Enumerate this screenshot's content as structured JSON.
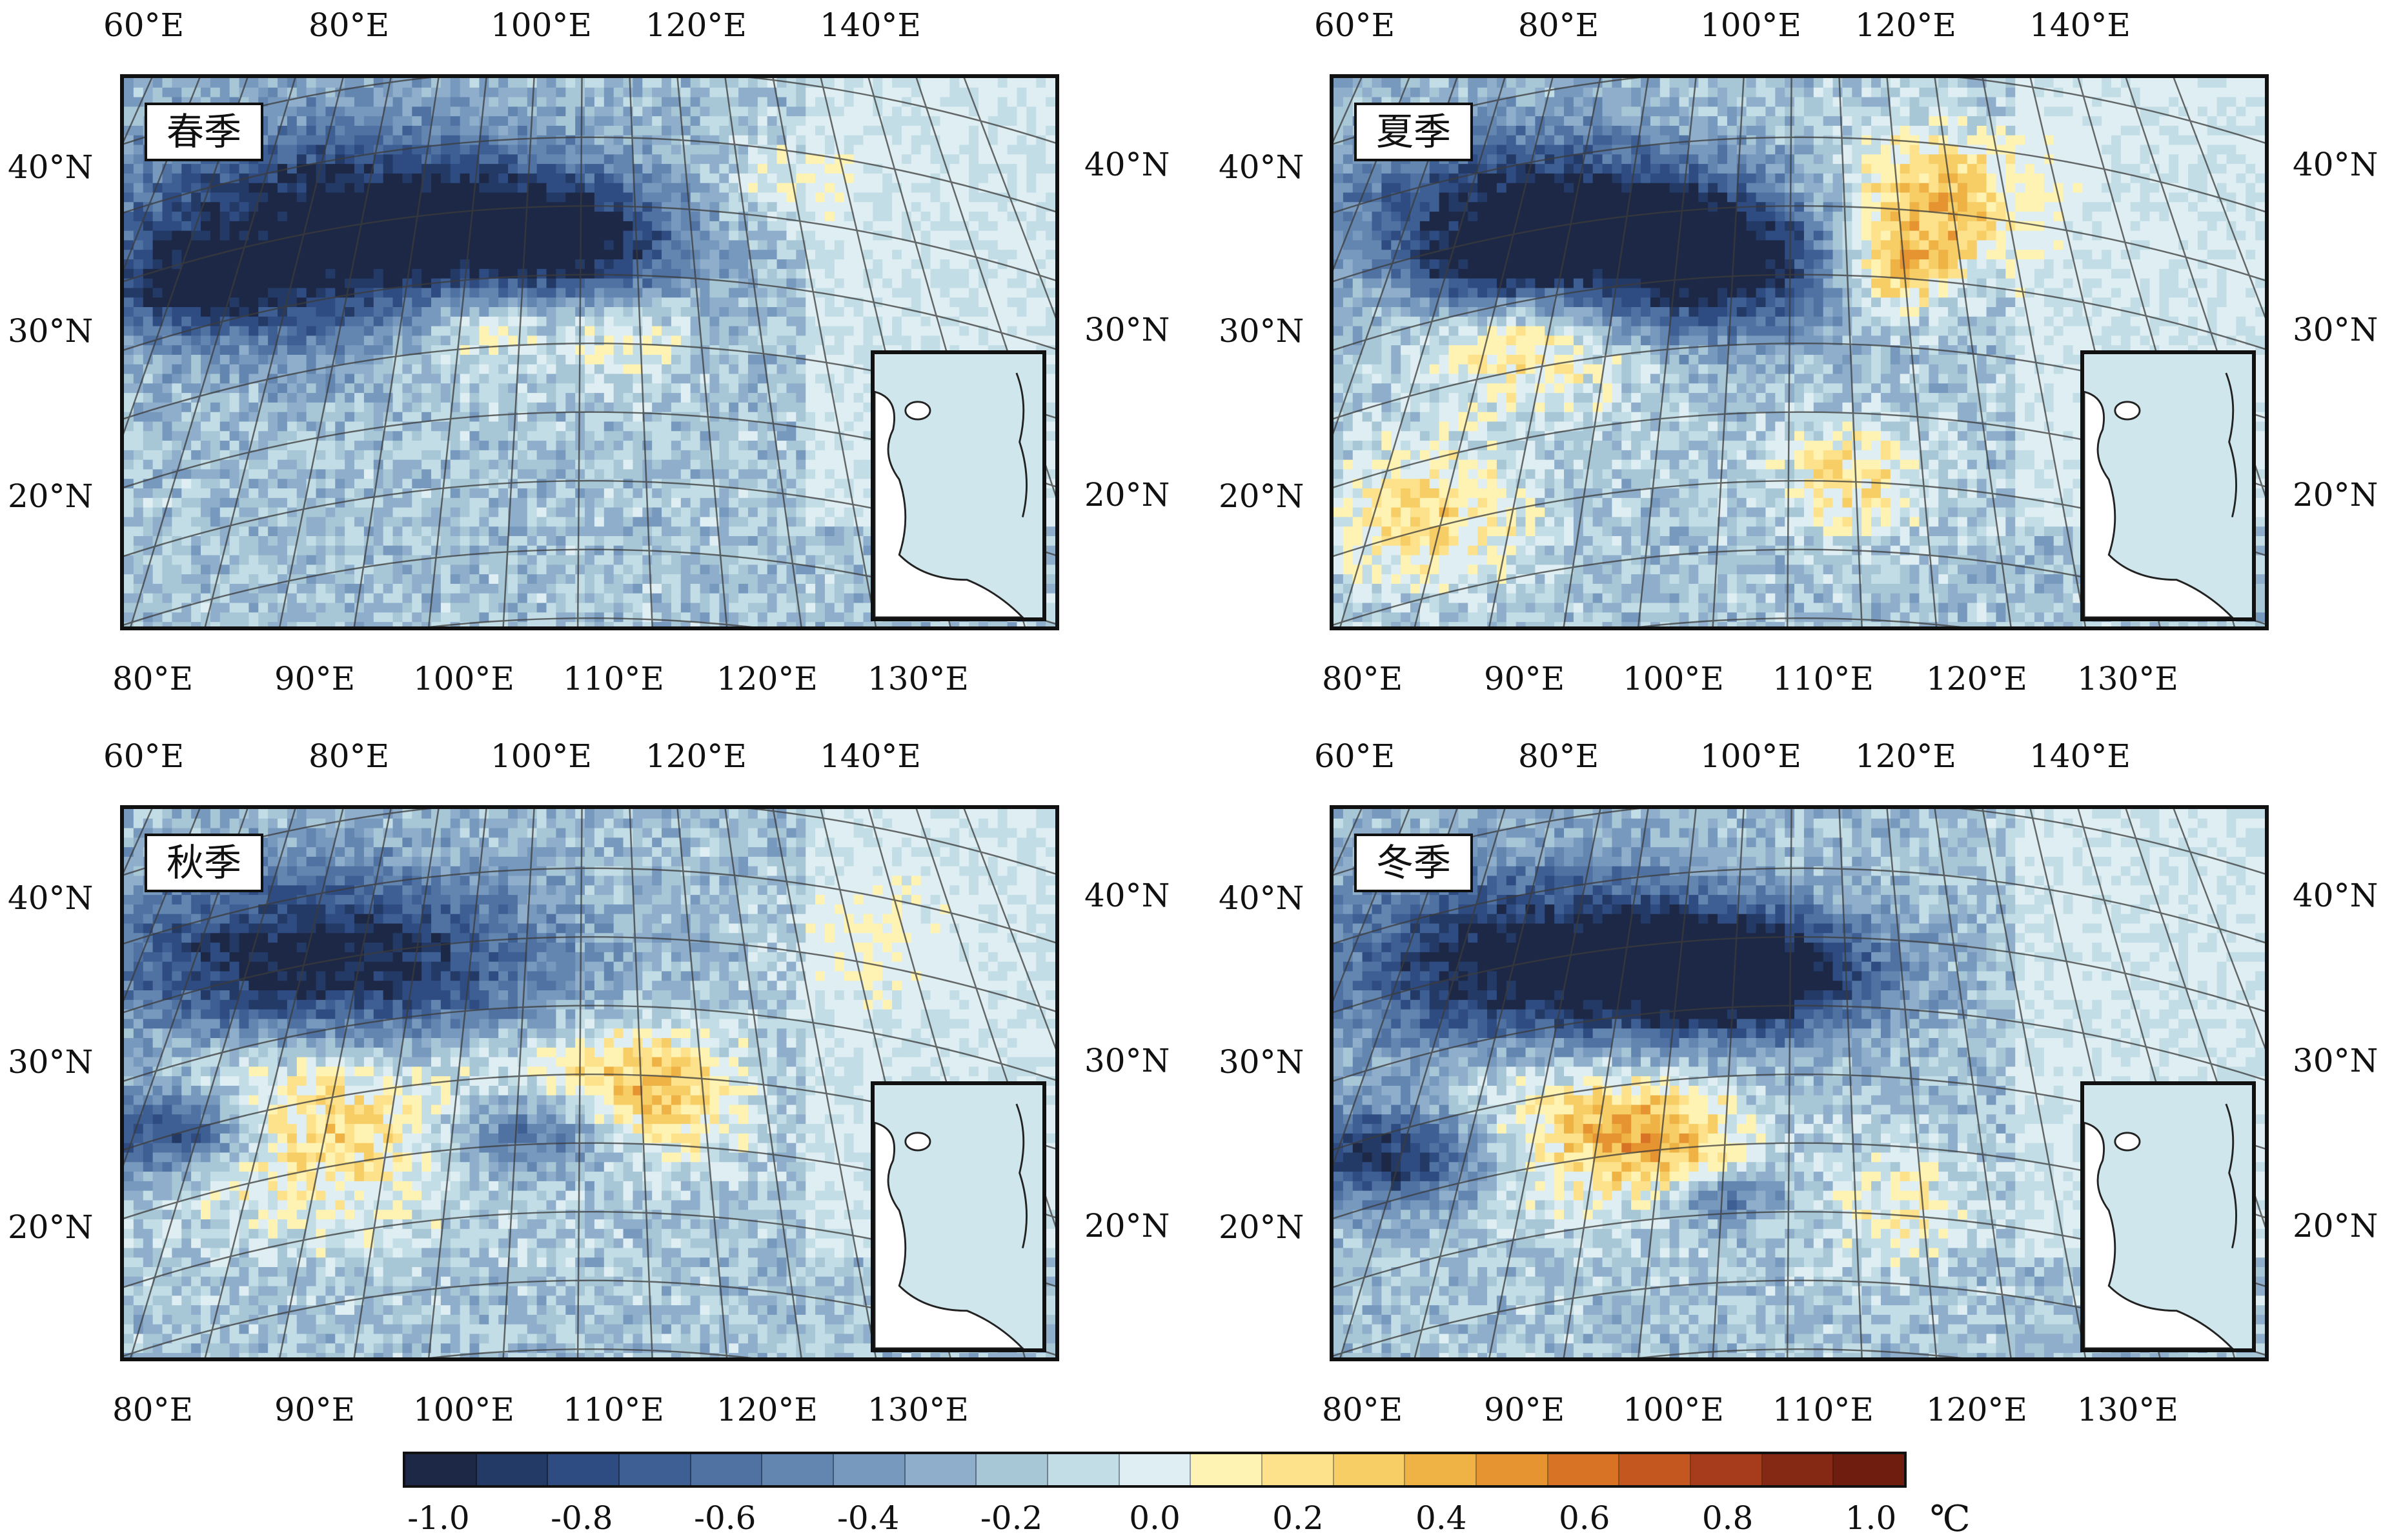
{
  "panels": [
    {
      "label": "春季"
    },
    {
      "label": "夏季"
    },
    {
      "label": "秋季"
    },
    {
      "label": "冬季"
    }
  ],
  "axes": {
    "top_lon": [
      "60°E",
      "80°E",
      "100°E",
      "120°E",
      "140°E"
    ],
    "bottom_lon": [
      "80°E",
      "90°E",
      "100°E",
      "110°E",
      "120°E",
      "130°E"
    ],
    "lat": [
      "40°N",
      "30°N",
      "20°N"
    ]
  },
  "colorbar": {
    "labels": [
      "-1.0",
      "-0.8",
      "-0.6",
      "-0.4",
      "-0.2",
      "0.0",
      "0.2",
      "0.4",
      "0.6",
      "0.8",
      "1.0"
    ],
    "unit": "℃",
    "colors": [
      "#1c2846",
      "#243a66",
      "#2f4c82",
      "#3e5f93",
      "#4f72a3",
      "#6386b1",
      "#7899be",
      "#8eaecb",
      "#a7c6d6",
      "#c2dde6",
      "#deeef2",
      "#fff3b3",
      "#fde28b",
      "#f7cd66",
      "#eeb245",
      "#e69432",
      "#d87326",
      "#c4561f",
      "#a63c1b",
      "#862914",
      "#6e1d0f"
    ],
    "range": [
      -1.0,
      1.0
    ]
  }
}
